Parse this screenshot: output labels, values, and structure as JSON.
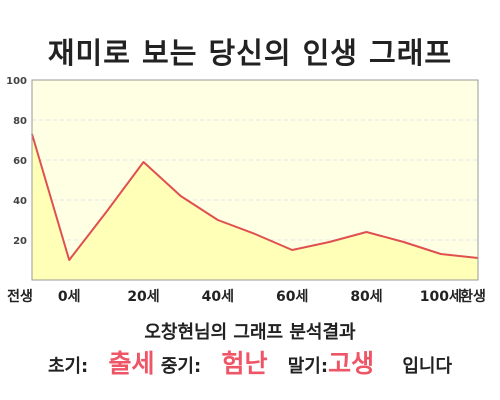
{
  "page": {
    "title": "재미로 보는 당신의 인생 그래프",
    "subtitle": "오창현님의 그래프 분석결과",
    "verdict": {
      "early_label": "초기:",
      "early_value": "출세",
      "mid_label": "중기:",
      "mid_value": "험난",
      "late_label": "말기:",
      "late_value": "고생",
      "suffix": "입니다"
    }
  },
  "chart_data": {
    "type": "area",
    "categories": [
      "전생",
      "0세",
      "20세",
      "40세",
      "60세",
      "80세",
      "100세",
      "환생"
    ],
    "x": [
      -10,
      0,
      10,
      20,
      30,
      40,
      50,
      60,
      70,
      80,
      90,
      100,
      110
    ],
    "series": [
      {
        "values": [
          73,
          10,
          34,
          59,
          42,
          30,
          23,
          15,
          19,
          24,
          19,
          13,
          11
        ]
      }
    ],
    "ylim": [
      0,
      100
    ],
    "yticks": [
      20,
      40,
      60,
      80,
      100
    ],
    "xticks_at": [
      -10,
      0,
      20,
      40,
      60,
      80,
      100,
      110
    ],
    "grid": true,
    "colors": {
      "line": "#e05050",
      "fill": "#ffffb8",
      "plot_bg": "#ffffe4",
      "grid": "#e6e6e6"
    }
  }
}
